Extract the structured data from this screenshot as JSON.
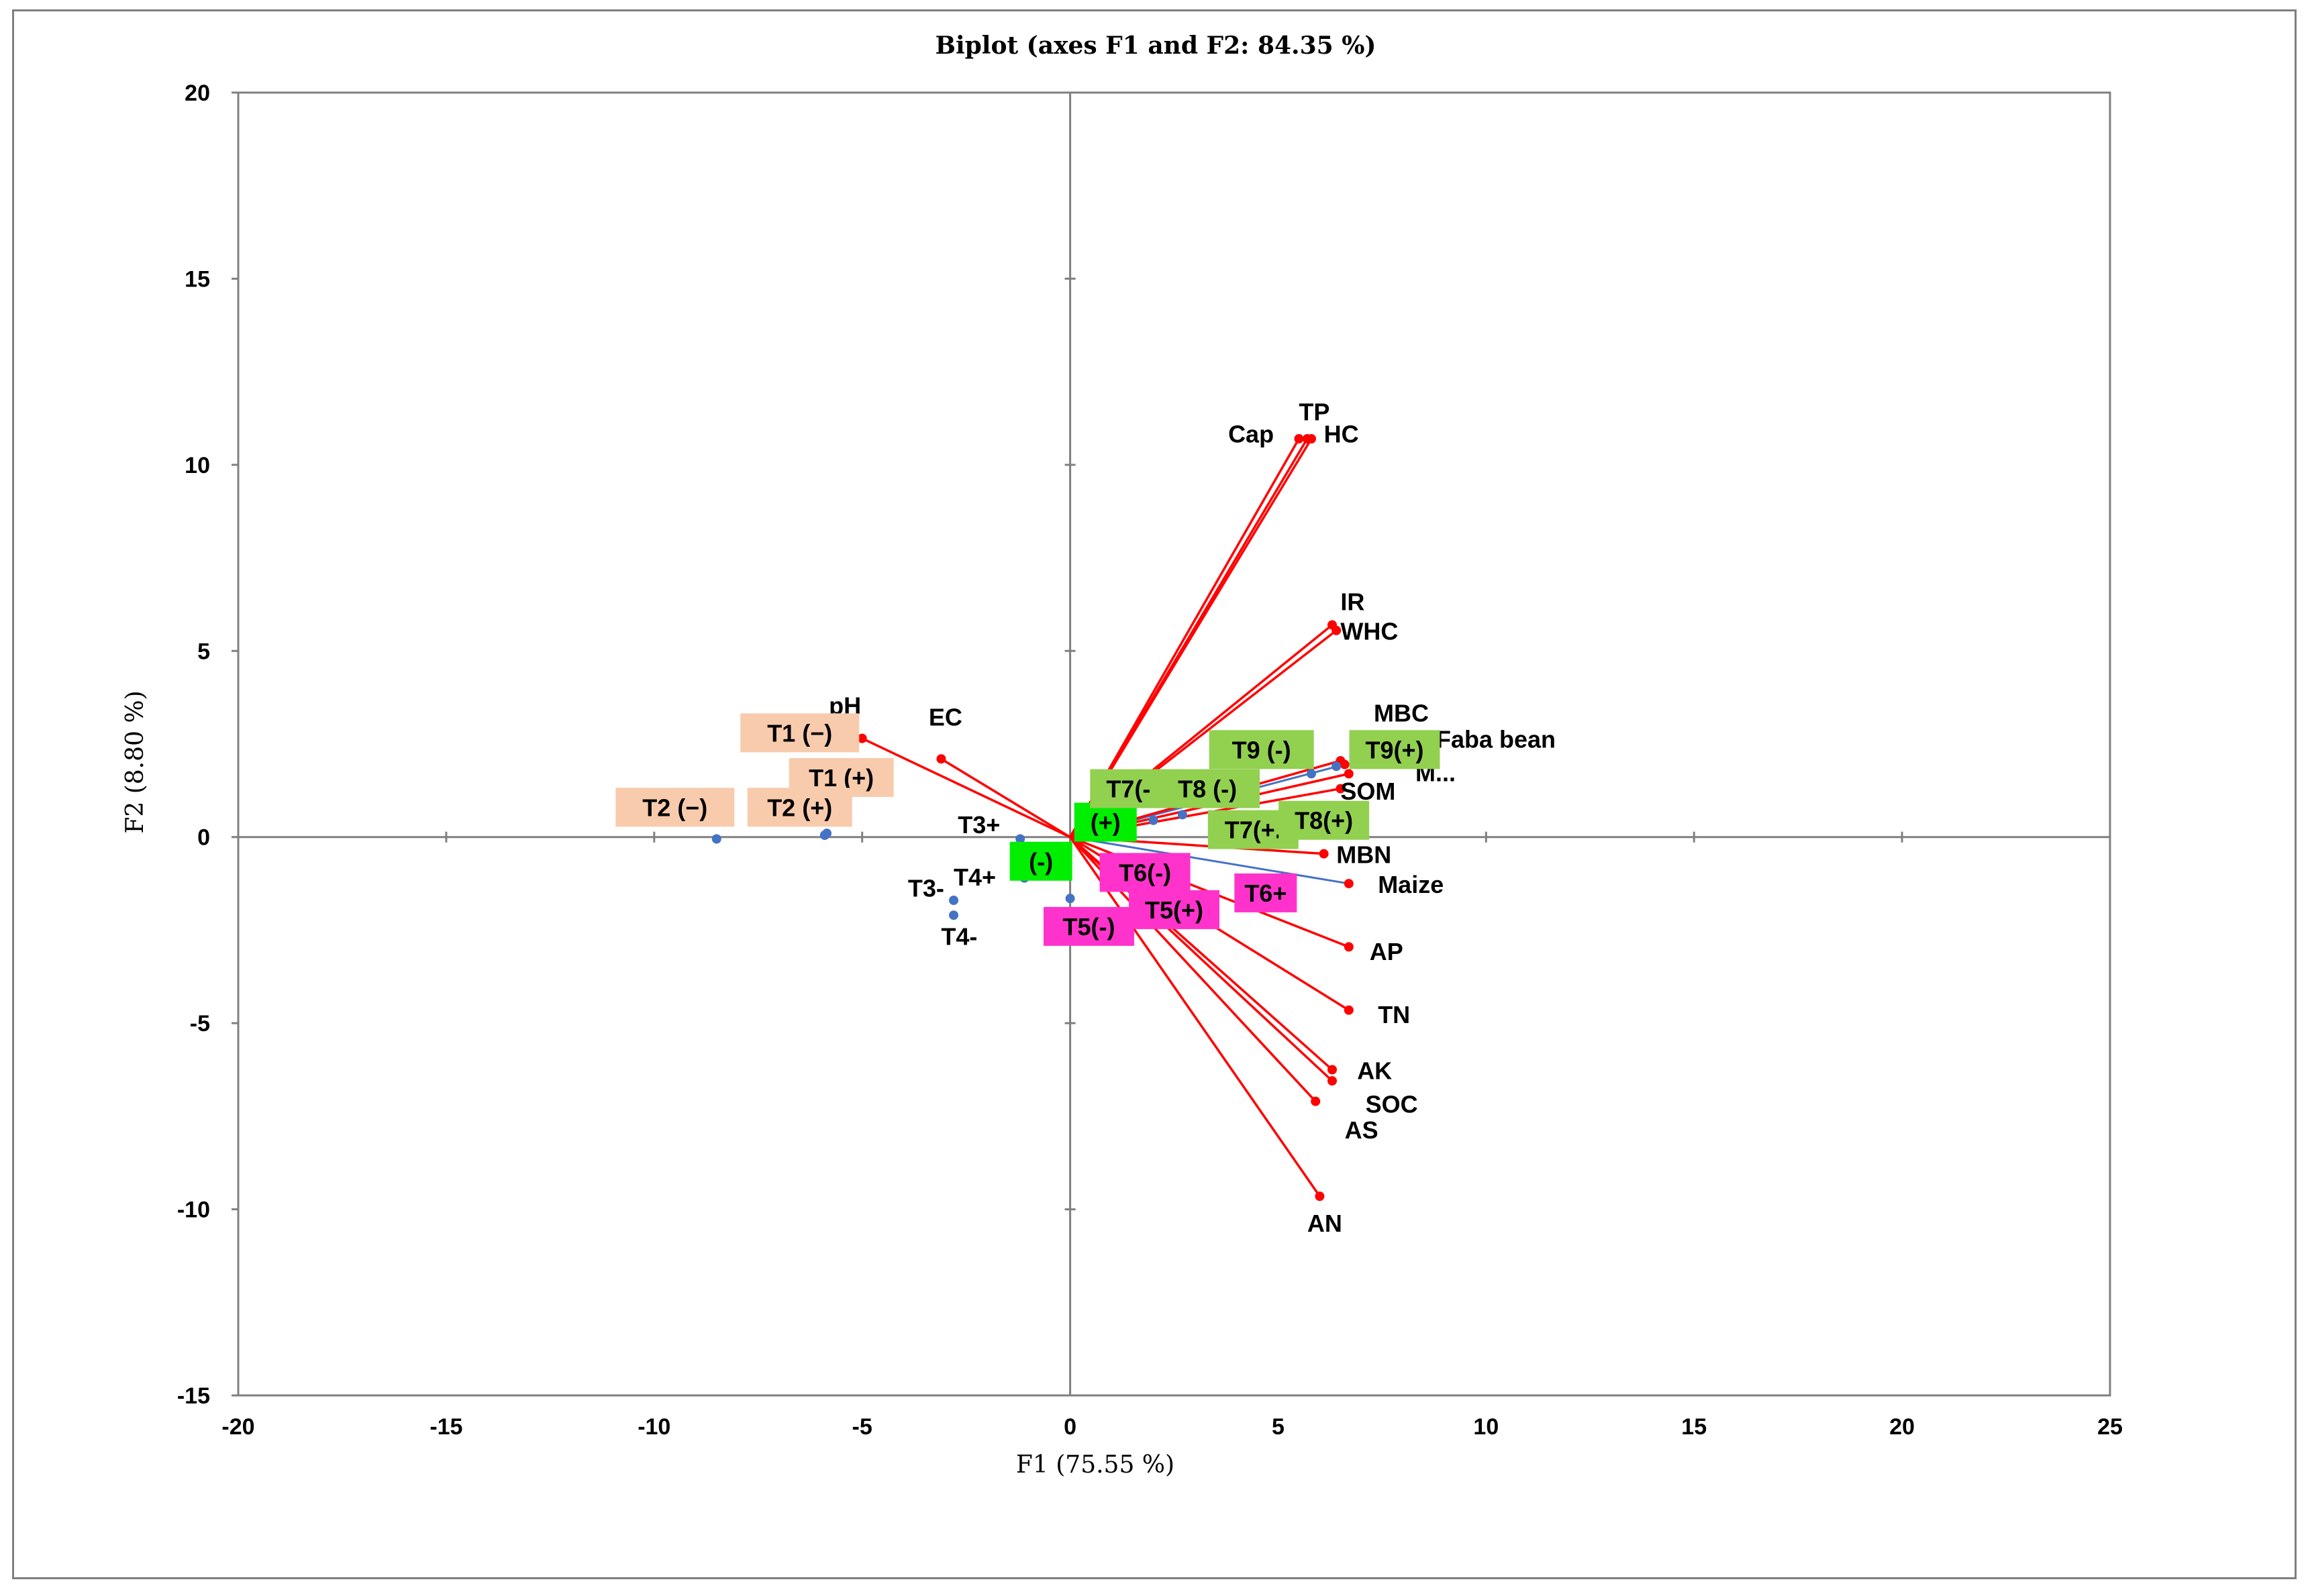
{
  "chart_data": {
    "type": "scatter",
    "title": "Biplot (axes F1 and F2: 84.35 %)",
    "xlabel": "F1 (75.55 %)",
    "ylabel": "F2 (8.80 %)",
    "xlim": [
      -20,
      25
    ],
    "ylim": [
      -15,
      20
    ],
    "xticks": [
      -20,
      -15,
      -10,
      -5,
      0,
      5,
      10,
      15,
      20,
      25
    ],
    "yticks": [
      -15,
      -10,
      -5,
      0,
      5,
      10,
      15,
      20
    ],
    "colors": {
      "variables": "#ff0000",
      "observations": "#4472c4",
      "axes": "#808080",
      "plot_border": "#808080"
    },
    "variables": [
      {
        "name": "pH",
        "x": -5.0,
        "y": 2.65,
        "lx": -5.8,
        "ly": 3.3
      },
      {
        "name": "EC",
        "x": -3.1,
        "y": 2.1,
        "lx": -3.4,
        "ly": 3.0
      },
      {
        "name": "TP",
        "x": 5.7,
        "y": 10.7,
        "lx": 5.5,
        "ly": 11.2
      },
      {
        "name": "Cap",
        "x": 5.5,
        "y": 10.7,
        "lx": 3.8,
        "ly": 10.6
      },
      {
        "name": "HC",
        "x": 5.8,
        "y": 10.7,
        "lx": 6.1,
        "ly": 10.6
      },
      {
        "name": "IR",
        "x": 6.3,
        "y": 5.7,
        "lx": 6.5,
        "ly": 6.1
      },
      {
        "name": "WHC",
        "x": 6.4,
        "y": 5.55,
        "lx": 6.5,
        "ly": 5.3
      },
      {
        "name": "MBC",
        "x": 6.5,
        "y": 2.05,
        "lx": 7.3,
        "ly": 3.1
      },
      {
        "name": "SOM",
        "x": 6.5,
        "y": 1.3,
        "lx": 6.5,
        "ly": 1.0
      },
      {
        "name": "M...",
        "x": 6.7,
        "y": 1.7,
        "lx": 8.3,
        "ly": 1.5
      },
      {
        "name": "MBN",
        "x": 6.1,
        "y": -0.45,
        "lx": 6.4,
        "ly": -0.7
      },
      {
        "name": "AP",
        "x": 6.7,
        "y": -2.95,
        "lx": 7.2,
        "ly": -3.3
      },
      {
        "name": "TN",
        "x": 6.7,
        "y": -4.65,
        "lx": 7.4,
        "ly": -5.0
      },
      {
        "name": "AK",
        "x": 6.3,
        "y": -6.25,
        "lx": 6.9,
        "ly": -6.5
      },
      {
        "name": "SOC",
        "x": 6.3,
        "y": -6.55,
        "lx": 7.1,
        "ly": -7.4
      },
      {
        "name": "AS",
        "x": 5.9,
        "y": -7.1,
        "lx": 6.6,
        "ly": -8.1
      },
      {
        "name": "AN",
        "x": 6.0,
        "y": -9.65,
        "lx": 5.7,
        "ly": -10.6
      }
    ],
    "supplementary": [
      {
        "name": "Faba bean",
        "x": 6.6,
        "y": 1.95,
        "lx": 8.8,
        "ly": 2.4
      },
      {
        "name": "Maize",
        "x": 6.7,
        "y": -1.25,
        "lx": 7.4,
        "ly": -1.5
      }
    ],
    "observations": [
      {
        "name": "T2 (−)",
        "x": -8.5,
        "y": -0.05,
        "group": "orange"
      },
      {
        "name": "T2 (+)",
        "x": -5.9,
        "y": 0.05,
        "group": "orange"
      },
      {
        "name": "T1 (−)",
        "x": -5.9,
        "y": 0.05,
        "group": "orange"
      },
      {
        "name": "T1 (+)",
        "x": -5.85,
        "y": 0.1,
        "group": "orange"
      },
      {
        "name": "T3+",
        "x": -1.2,
        "y": -0.05
      },
      {
        "name": "T3-",
        "x": -2.8,
        "y": -1.7
      },
      {
        "name": "T4-",
        "x": -2.8,
        "y": -2.1
      },
      {
        "name": "T4+",
        "x": -1.1,
        "y": -1.1
      },
      {
        "name": "(−)",
        "x": 0.0,
        "y": -1.65,
        "group": "green"
      },
      {
        "name": "(+)",
        "x": 0.5,
        "y": 0.1,
        "group": "green"
      },
      {
        "name": "T7(-)",
        "x": 2.0,
        "y": 0.45,
        "group": "olive"
      },
      {
        "name": "T8 (-)",
        "x": 2.7,
        "y": 0.6,
        "group": "olive"
      },
      {
        "name": "T9 (-)",
        "x": 5.8,
        "y": 1.7,
        "group": "olive"
      },
      {
        "name": "T9(+)",
        "x": 6.4,
        "y": 1.9,
        "group": "olive"
      },
      {
        "name": "T7(+)",
        "x": 3.8,
        "y": 0.4,
        "group": "olive"
      },
      {
        "name": "T8(+)",
        "x": 5.0,
        "y": 0.5,
        "group": "olive"
      }
    ],
    "labels_boxed": [
      {
        "text": "T1  (−)",
        "cx": -6.5,
        "cy": 2.8,
        "color": "#f8cbad"
      },
      {
        "text": "T1 (+)",
        "cx": -5.5,
        "cy": 1.6,
        "color": "#f8cbad"
      },
      {
        "text": "T2  (−)",
        "cx": -9.5,
        "cy": 0.8,
        "color": "#f8cbad"
      },
      {
        "text": "T2 (+)",
        "cx": -6.5,
        "cy": 0.8,
        "color": "#f8cbad"
      },
      {
        "text": "(+)",
        "cx": 0.85,
        "cy": 0.4,
        "color": "#00ee00"
      },
      {
        "text": "(-)",
        "cx": -0.7,
        "cy": -0.65,
        "color": "#00ee00"
      },
      {
        "text": "T9 (-)",
        "cx": 4.6,
        "cy": 2.35,
        "color": "#92d050"
      },
      {
        "text": "T9(+)",
        "cx": 7.8,
        "cy": 2.35,
        "color": "#92d050"
      },
      {
        "text": "T7(-",
        "cx": 1.4,
        "cy": 1.3,
        "color": "#92d050"
      },
      {
        "text": "T8 (-)",
        "cx": 3.3,
        "cy": 1.3,
        "color": "#92d050"
      },
      {
        "text": "T7(+.",
        "cx": 4.4,
        "cy": 0.2,
        "color": "#92d050"
      },
      {
        "text": "T8(+)",
        "cx": 6.1,
        "cy": 0.45,
        "color": "#92d050"
      },
      {
        "text": "T6(-)",
        "cx": 1.8,
        "cy": -0.95,
        "color": "#ff33cc"
      },
      {
        "text": "T6+",
        "cx": 4.7,
        "cy": -1.5,
        "color": "#ff33cc"
      },
      {
        "text": "T5(+)",
        "cx": 2.5,
        "cy": -1.95,
        "color": "#ff33cc"
      },
      {
        "text": "T5(-)",
        "cx": 0.45,
        "cy": -2.4,
        "color": "#ff33cc"
      }
    ],
    "labels_plain": [
      {
        "text": "T3+",
        "lx": -2.7,
        "ly": 0.1
      },
      {
        "text": "T3-",
        "lx": -3.9,
        "ly": -1.6
      },
      {
        "text": "T4-",
        "lx": -3.1,
        "ly": -2.9
      },
      {
        "text": "T4+",
        "lx": -2.8,
        "ly": -1.3
      }
    ]
  }
}
